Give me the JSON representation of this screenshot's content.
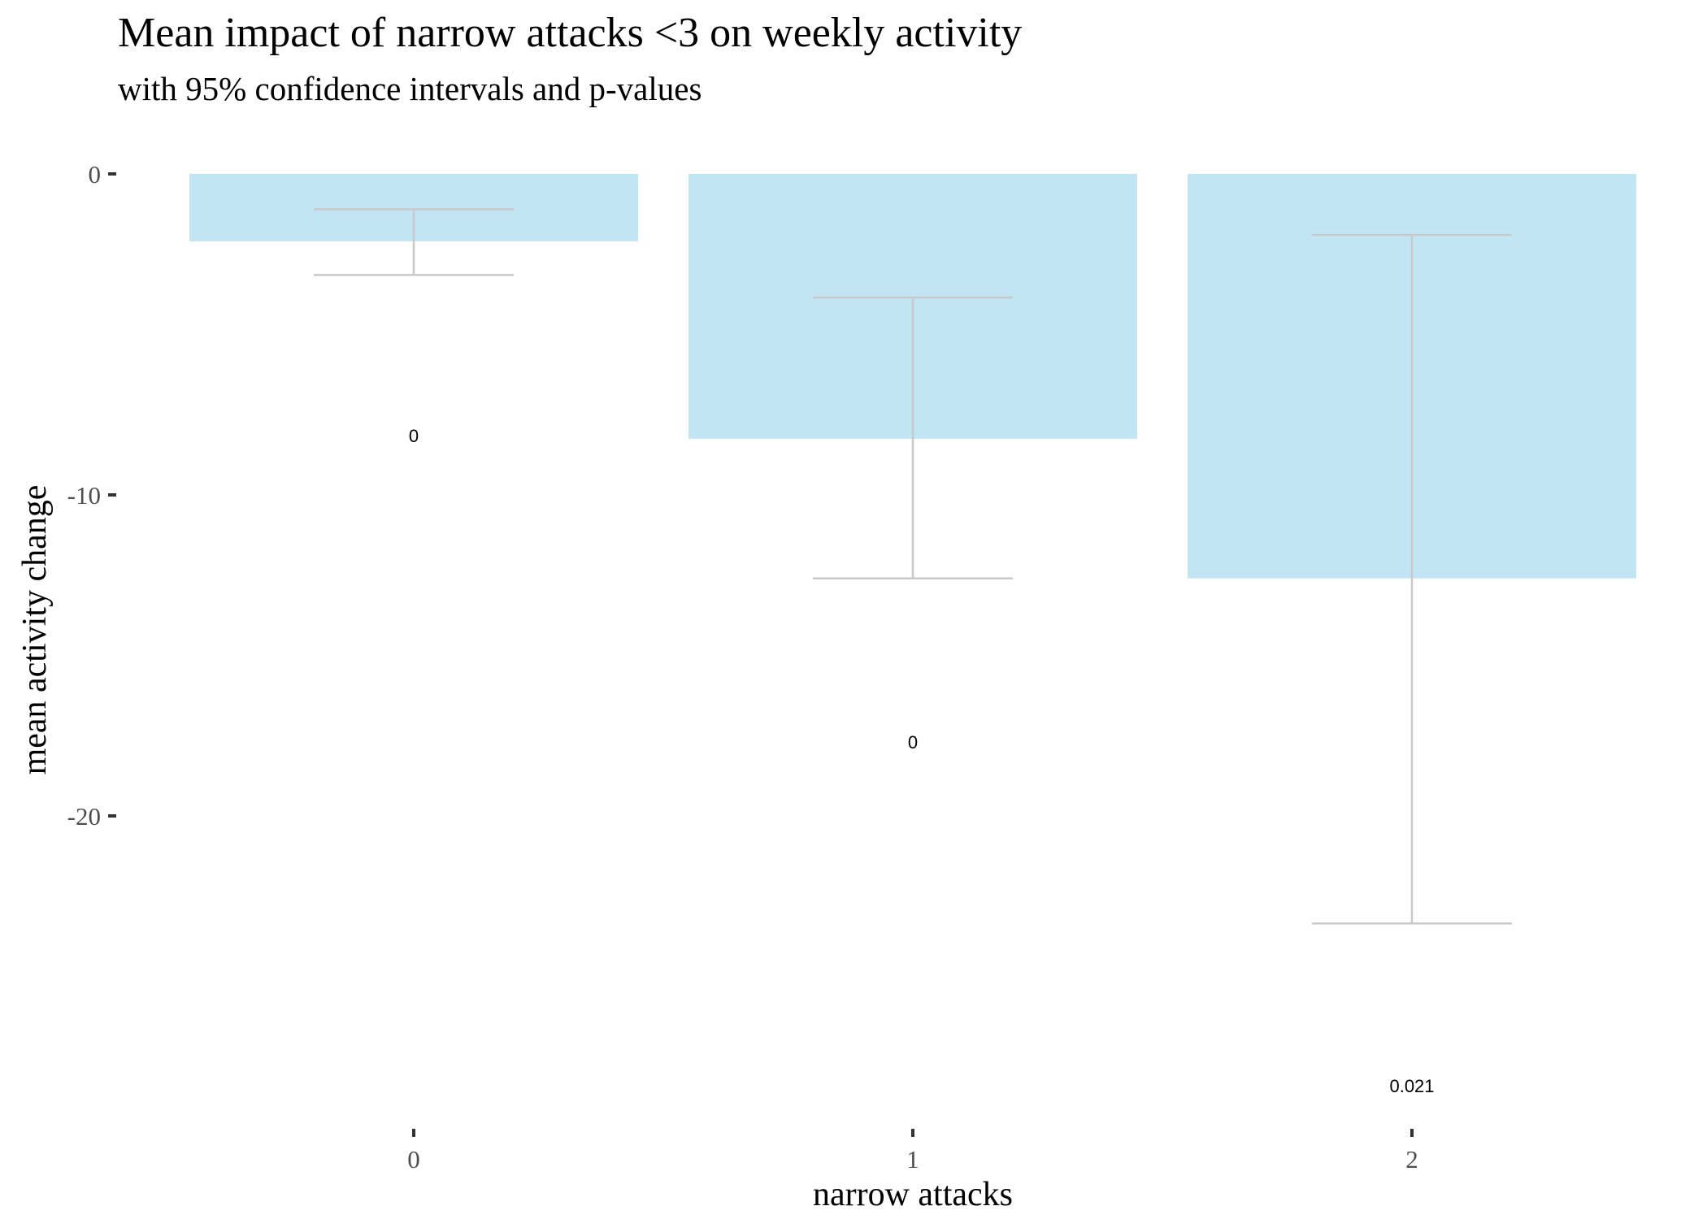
{
  "chart_data": {
    "type": "bar",
    "title": "Mean impact of narrow attacks <3 on  weekly activity",
    "subtitle": "with 95% confidence intervals and p-values",
    "xlabel": "narrow attacks",
    "ylabel": "mean activity change",
    "categories": [
      "0",
      "1",
      "2"
    ],
    "values": [
      -2.1,
      -8.25,
      -12.6
    ],
    "ci_lower": [
      -3.15,
      -12.6,
      -23.35
    ],
    "ci_upper": [
      -1.1,
      -3.85,
      -1.9
    ],
    "p_values": [
      "0",
      "0",
      "0.021"
    ],
    "p_label_y": [
      -8.15,
      -17.7,
      -28.4
    ],
    "ylim": [
      -29.5,
      0
    ],
    "yticks": [
      0,
      -10,
      -20
    ],
    "ytick_labels": [
      "0",
      "-10",
      "-20"
    ],
    "grid": false,
    "legend": "none",
    "bar_color": "#c2e5f4",
    "errorbar_color": "#c9c9c9"
  }
}
